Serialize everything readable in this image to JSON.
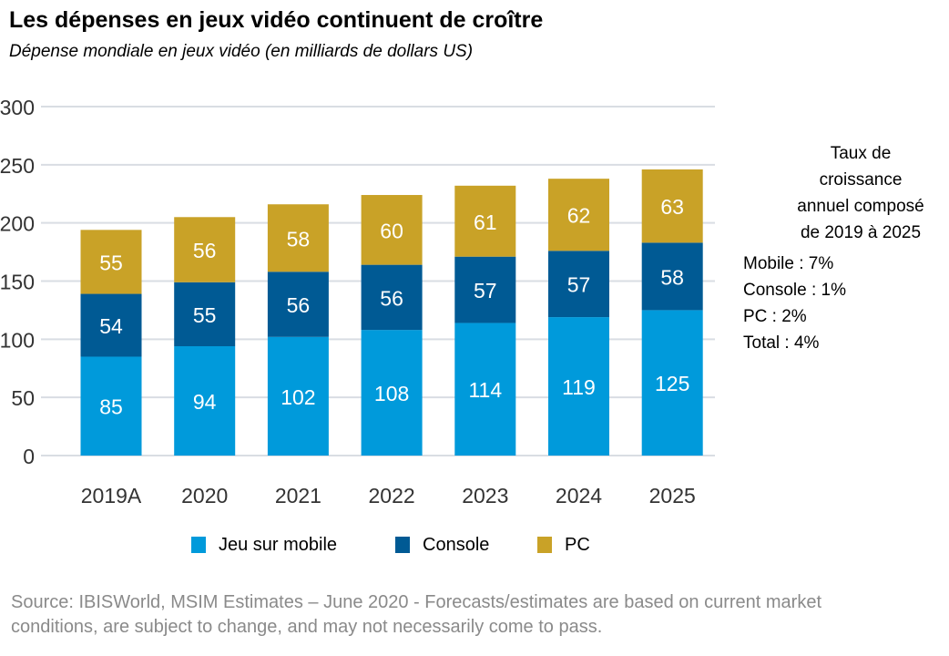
{
  "chart_data": {
    "type": "bar",
    "stacked": true,
    "title": "Les dépenses en jeux vidéo continuent de croître",
    "subtitle": "Dépense mondiale en jeux vidéo (en milliards de dollars US)",
    "categories": [
      "2019A",
      "2020",
      "2021",
      "2022",
      "2023",
      "2024",
      "2025"
    ],
    "series": [
      {
        "name": "Jeu sur mobile",
        "color": "#009ADB",
        "values": [
          85,
          94,
          102,
          108,
          114,
          119,
          125
        ]
      },
      {
        "name": "Console",
        "color": "#005A94",
        "values": [
          54,
          55,
          56,
          56,
          57,
          57,
          58
        ]
      },
      {
        "name": "PC",
        "color": "#C9A227",
        "values": [
          55,
          56,
          58,
          60,
          61,
          62,
          63
        ]
      }
    ],
    "ylim": [
      0,
      300
    ],
    "yticks": [
      0,
      50,
      100,
      150,
      200,
      250,
      300
    ],
    "grid": true,
    "legend_position": "bottom"
  },
  "annotation": {
    "title": "Taux de croissance annuel composé de 2019 à 2025",
    "title_lines": [
      "Taux de",
      "croissance",
      "annuel composé",
      "de 2019 à 2025"
    ],
    "items": [
      "Mobile : 7%",
      "Console : 1%",
      "PC : 2%",
      "Total : 4%"
    ]
  },
  "source": {
    "line1": "Source: IBISWorld, MSIM Estimates – June 2020 - Forecasts/estimates are based on current market",
    "line2": "conditions, are subject to change, and may not necessarily come to pass."
  }
}
